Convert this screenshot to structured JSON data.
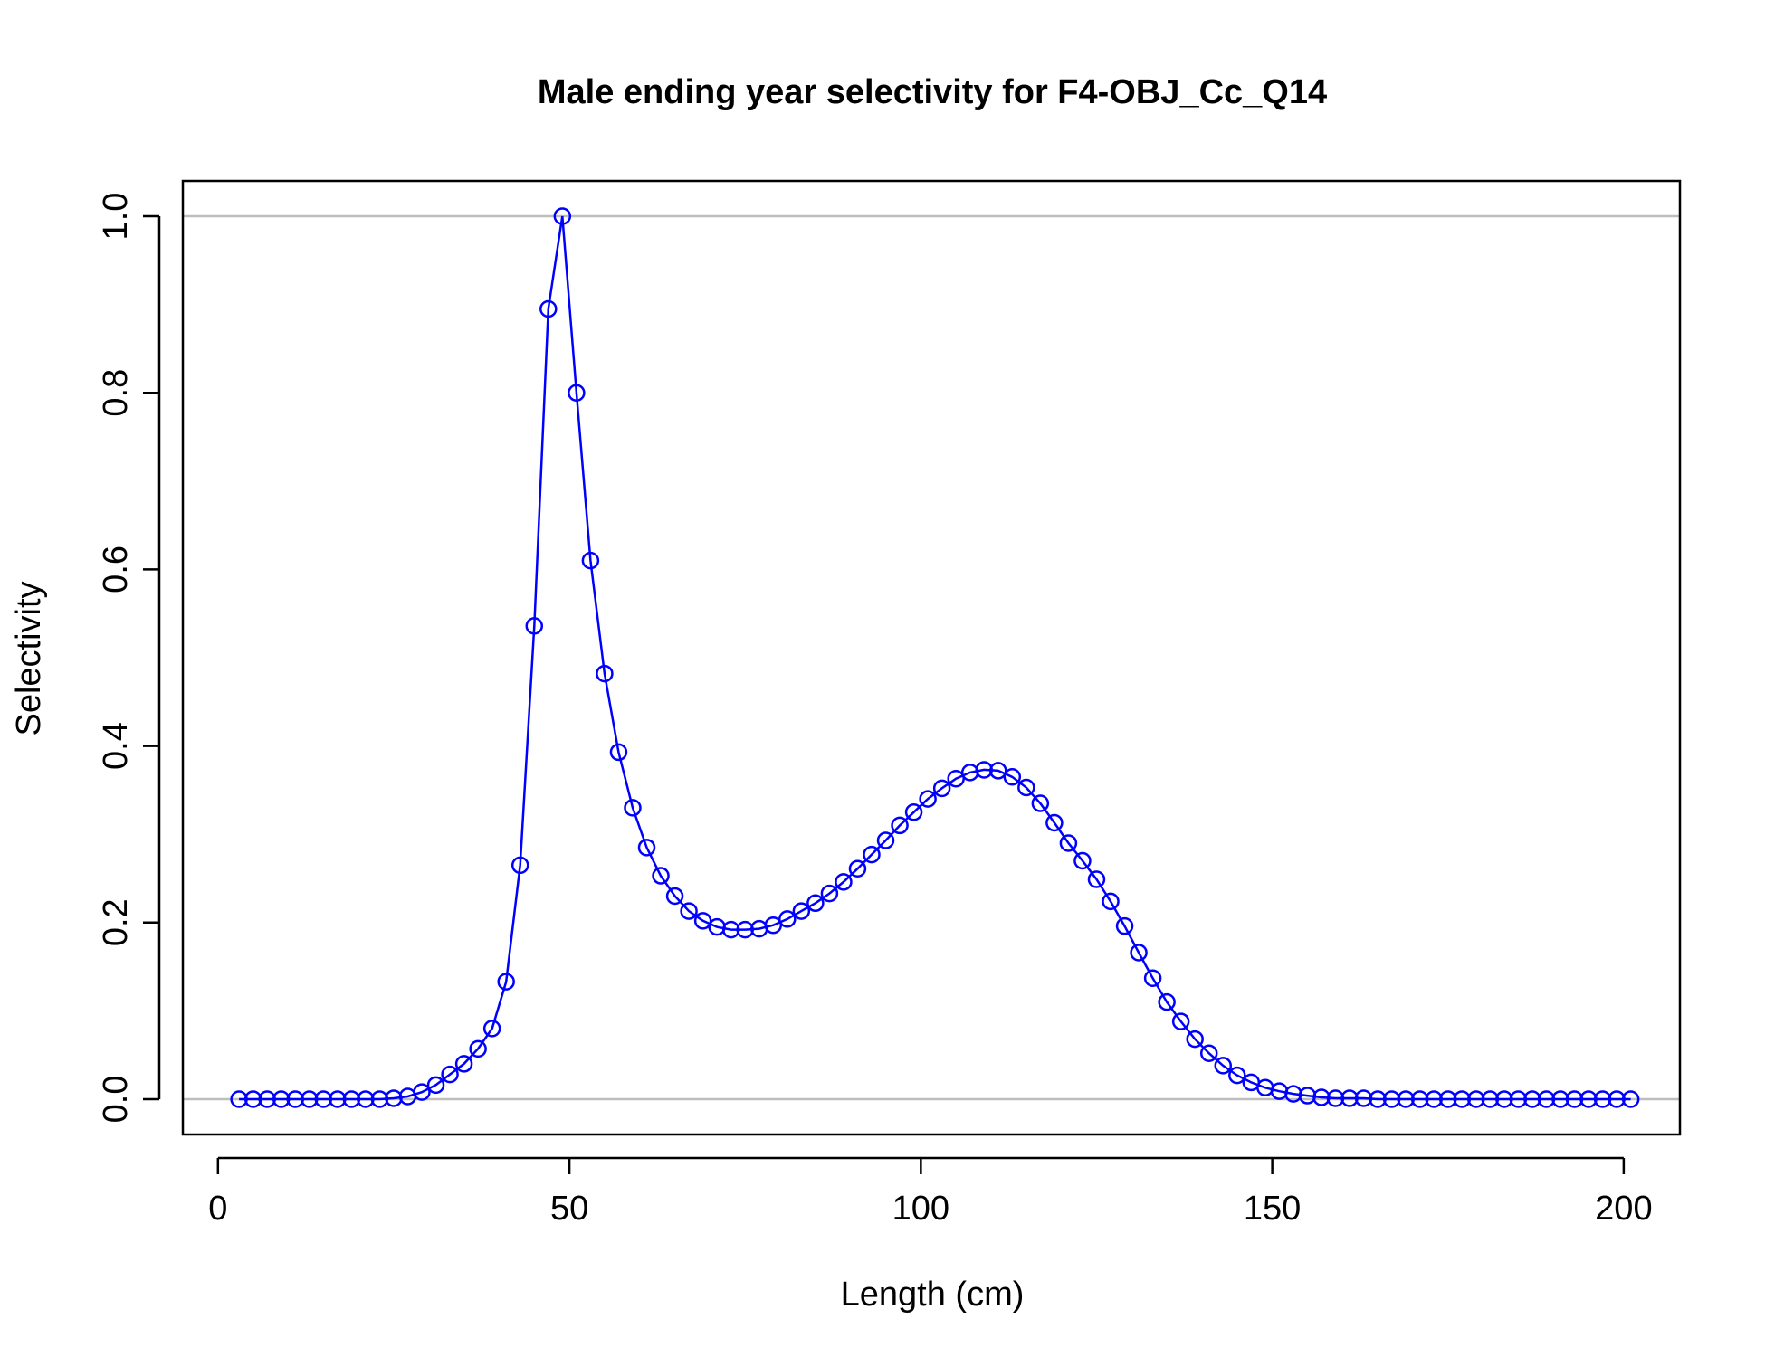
{
  "chart_data": {
    "type": "line",
    "title": "Male ending year selectivity for F4-OBJ_Cc_Q14",
    "xlabel": "Length (cm)",
    "ylabel": "Selectivity",
    "xlim": [
      -5,
      208
    ],
    "ylim": [
      -0.04,
      1.04
    ],
    "x_ticks": [
      0,
      50,
      100,
      150,
      200
    ],
    "x_tick_labels": [
      "0",
      "50",
      "100",
      "150",
      "200"
    ],
    "y_ticks": [
      0,
      0.2,
      0.4,
      0.6,
      0.8,
      1.0
    ],
    "y_tick_labels": [
      "0.0",
      "0.2",
      "0.4",
      "0.6",
      "0.8",
      "1.0"
    ],
    "reference_lines_y": [
      0,
      1
    ],
    "grid": false,
    "colors": {
      "series": "#0000ff",
      "reference_line": "#bebebe",
      "axis": "#000000"
    },
    "marker": "open-circle",
    "series": [
      {
        "x": [
          3,
          5,
          7,
          9,
          11,
          13,
          15,
          17,
          19,
          21,
          23,
          25,
          27,
          29,
          31,
          33,
          35,
          37,
          39,
          41,
          43,
          45,
          47,
          49,
          51,
          53,
          55,
          57,
          59,
          61,
          63,
          65,
          67,
          69,
          71,
          73,
          75,
          77,
          79,
          81,
          83,
          85,
          87,
          89,
          91,
          93,
          95,
          97,
          99,
          101,
          103,
          105,
          107,
          109,
          111,
          113,
          115,
          117,
          119,
          121,
          123,
          125,
          127,
          129,
          131,
          133,
          135,
          137,
          139,
          141,
          143,
          145,
          147,
          149,
          151,
          153,
          155,
          157,
          159,
          161,
          163,
          165,
          167,
          169,
          171,
          173,
          175,
          177,
          179,
          181,
          183,
          185,
          187,
          189,
          191,
          193,
          195,
          197,
          199,
          201
        ],
        "values": [
          0,
          0,
          0,
          0,
          0,
          0,
          0,
          0,
          0,
          0,
          0,
          0.001,
          0.003,
          0.008,
          0.016,
          0.028,
          0.04,
          0.057,
          0.08,
          0.133,
          0.265,
          0.536,
          0.895,
          1.0,
          0.8,
          0.61,
          0.482,
          0.393,
          0.33,
          0.285,
          0.253,
          0.23,
          0.213,
          0.202,
          0.195,
          0.192,
          0.192,
          0.193,
          0.197,
          0.204,
          0.213,
          0.222,
          0.233,
          0.246,
          0.261,
          0.277,
          0.293,
          0.31,
          0.325,
          0.34,
          0.352,
          0.363,
          0.37,
          0.373,
          0.372,
          0.365,
          0.353,
          0.335,
          0.313,
          0.29,
          0.27,
          0.249,
          0.224,
          0.196,
          0.166,
          0.137,
          0.11,
          0.088,
          0.068,
          0.052,
          0.038,
          0.027,
          0.019,
          0.013,
          0.009,
          0.006,
          0.004,
          0.002,
          0.001,
          0.001,
          0.001,
          0,
          0,
          0,
          0,
          0,
          0,
          0,
          0,
          0,
          0,
          0,
          0,
          0,
          0,
          0,
          0,
          0,
          0,
          0
        ]
      }
    ]
  }
}
